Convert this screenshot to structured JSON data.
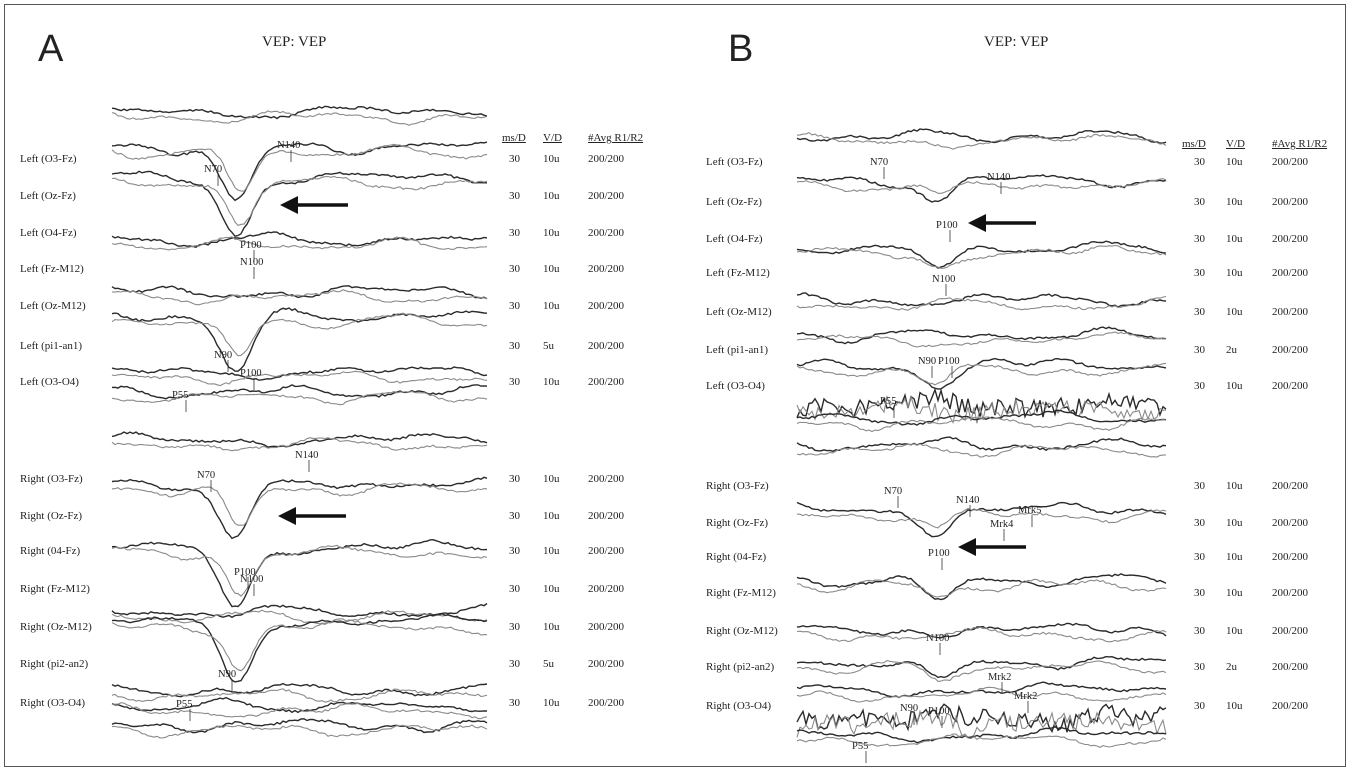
{
  "chart_data": [
    {
      "type": "line",
      "panel_letter": "A",
      "title": "VEP:  VEP",
      "columns": [
        "ms/D",
        "V/D",
        "#Avg  R1/R2"
      ],
      "rows": [
        {
          "channel": "Left  (O3-Fz)",
          "ms_d": "30",
          "v_d": "10u",
          "avg": "200/200"
        },
        {
          "channel": "Left  (Oz-Fz)",
          "ms_d": "30",
          "v_d": "10u",
          "avg": "200/200"
        },
        {
          "channel": "Left  (O4-Fz)",
          "ms_d": "30",
          "v_d": "10u",
          "avg": "200/200"
        },
        {
          "channel": "Left  (Fz-M12)",
          "ms_d": "30",
          "v_d": "10u",
          "avg": "200/200"
        },
        {
          "channel": "Left  (Oz-M12)",
          "ms_d": "30",
          "v_d": "10u",
          "avg": "200/200"
        },
        {
          "channel": "Left  (pi1-an1)",
          "ms_d": "30",
          "v_d": "5u",
          "avg": "200/200"
        },
        {
          "channel": "Left  (O3-O4)",
          "ms_d": "30",
          "v_d": "10u",
          "avg": "200/200"
        },
        {
          "channel": "Right  (O3-Fz)",
          "ms_d": "30",
          "v_d": "10u",
          "avg": "200/200"
        },
        {
          "channel": "Right  (Oz-Fz)",
          "ms_d": "30",
          "v_d": "10u",
          "avg": "200/200"
        },
        {
          "channel": "Right  (04-Fz)",
          "ms_d": "30",
          "v_d": "10u",
          "avg": "200/200"
        },
        {
          "channel": "Right  (Fz-M12)",
          "ms_d": "30",
          "v_d": "10u",
          "avg": "200/200"
        },
        {
          "channel": "Right  (Oz-M12)",
          "ms_d": "30",
          "v_d": "10u",
          "avg": "200/200"
        },
        {
          "channel": "Right  (pi2-an2)",
          "ms_d": "30",
          "v_d": "5u",
          "avg": "200/200"
        },
        {
          "channel": "Right  (O3-O4)",
          "ms_d": "30",
          "v_d": "10u",
          "avg": "200/200"
        }
      ],
      "markers": [
        "N70",
        "N140",
        "P100",
        "N100",
        "N90",
        "P100",
        "P55",
        "N70",
        "N140",
        "P100",
        "N100",
        "N90",
        "P55"
      ]
    },
    {
      "type": "line",
      "panel_letter": "B",
      "title": "VEP:  VEP",
      "columns": [
        "ms/D",
        "V/D",
        "#Avg  R1/R2"
      ],
      "rows": [
        {
          "channel": "Left  (O3-Fz)",
          "ms_d": "30",
          "v_d": "10u",
          "avg": "200/200"
        },
        {
          "channel": "Left  (Oz-Fz)",
          "ms_d": "30",
          "v_d": "10u",
          "avg": "200/200"
        },
        {
          "channel": "Left  (O4-Fz)",
          "ms_d": "30",
          "v_d": "10u",
          "avg": "200/200"
        },
        {
          "channel": "Left  (Fz-M12)",
          "ms_d": "30",
          "v_d": "10u",
          "avg": "200/200"
        },
        {
          "channel": "Left  (Oz-M12)",
          "ms_d": "30",
          "v_d": "10u",
          "avg": "200/200"
        },
        {
          "channel": "Left  (pi1-an1)",
          "ms_d": "30",
          "v_d": "2u",
          "avg": "200/200"
        },
        {
          "channel": "Left  (O3-O4)",
          "ms_d": "30",
          "v_d": "10u",
          "avg": "200/200"
        },
        {
          "channel": "Right  (O3-Fz)",
          "ms_d": "30",
          "v_d": "10u",
          "avg": "200/200"
        },
        {
          "channel": "Right  (Oz-Fz)",
          "ms_d": "30",
          "v_d": "10u",
          "avg": "200/200"
        },
        {
          "channel": "Right  (04-Fz)",
          "ms_d": "30",
          "v_d": "10u",
          "avg": "200/200"
        },
        {
          "channel": "Right  (Fz-M12)",
          "ms_d": "30",
          "v_d": "10u",
          "avg": "200/200"
        },
        {
          "channel": "Right  (Oz-M12)",
          "ms_d": "30",
          "v_d": "10u",
          "avg": "200/200"
        },
        {
          "channel": "Right  (pi2-an2)",
          "ms_d": "30",
          "v_d": "2u",
          "avg": "200/200"
        },
        {
          "channel": "Right  (O3-O4)",
          "ms_d": "30",
          "v_d": "10u",
          "avg": "200/200"
        }
      ],
      "markers": [
        "N70",
        "N140",
        "P100",
        "N100",
        "N90",
        "P100",
        "P55",
        "N70",
        "N140",
        "Mrk4",
        "Mrk5",
        "P100",
        "N100",
        "Mrk2",
        "Mrk2",
        "N90",
        "P100",
        "P55"
      ]
    }
  ]
}
